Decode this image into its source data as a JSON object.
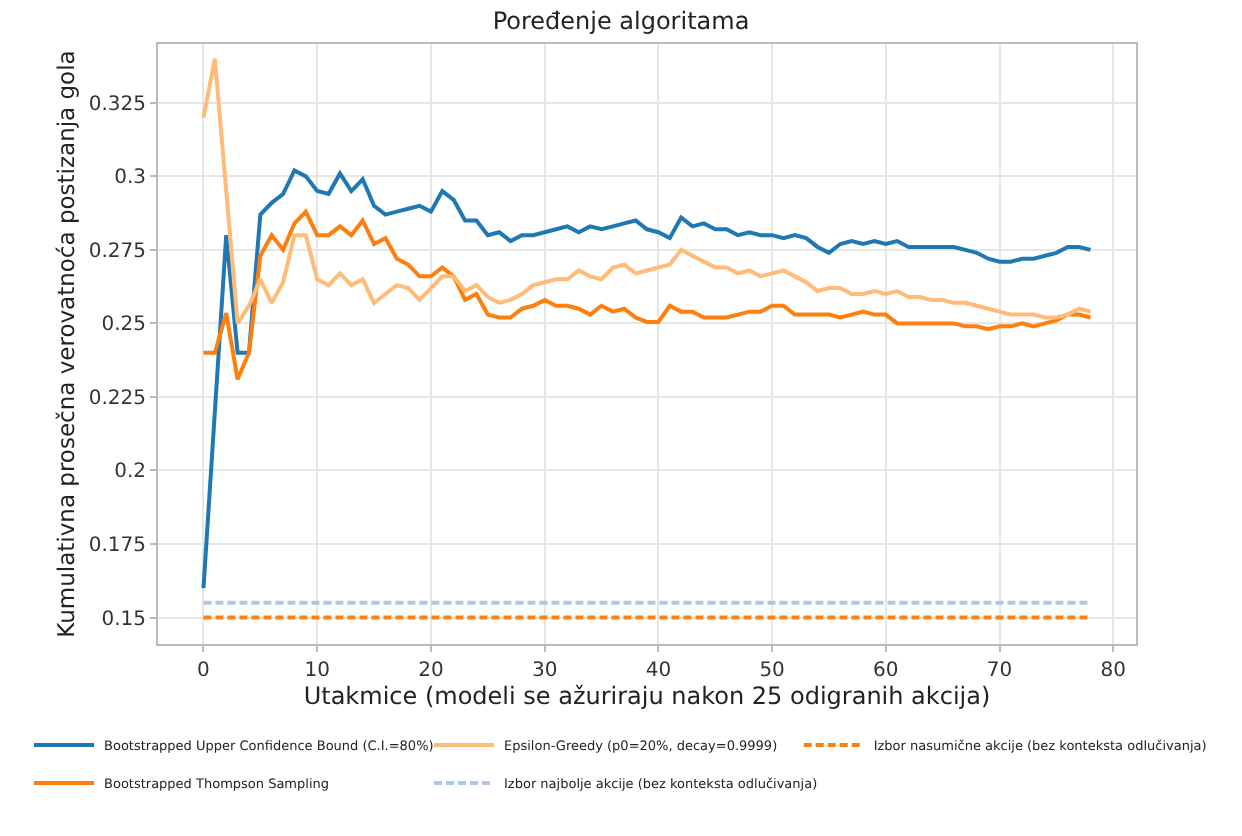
{
  "chart_data": {
    "type": "line",
    "title": "Poređenje algoritama",
    "xlabel": "Utakmice (modeli se ažuriraju nakon 25 odigranih akcija)",
    "ylabel": "Kumulativna prosečna verovatnoća postizanja gola",
    "x": [
      0,
      1,
      2,
      3,
      4,
      5,
      6,
      7,
      8,
      9,
      10,
      11,
      12,
      13,
      14,
      15,
      16,
      17,
      18,
      19,
      20,
      21,
      22,
      23,
      24,
      25,
      26,
      27,
      28,
      29,
      30,
      31,
      32,
      33,
      34,
      35,
      36,
      37,
      38,
      39,
      40,
      41,
      42,
      43,
      44,
      45,
      46,
      47,
      48,
      49,
      50,
      51,
      52,
      53,
      54,
      55,
      56,
      57,
      58,
      59,
      60,
      61,
      62,
      63,
      64,
      65,
      66,
      67,
      68,
      69,
      70,
      71,
      72,
      73,
      74,
      75,
      76,
      77,
      78
    ],
    "xlim": [
      -4,
      82
    ],
    "xticks": [
      0,
      10,
      20,
      30,
      40,
      50,
      60,
      70,
      80
    ],
    "ylim": [
      0.141,
      0.345
    ],
    "yticks": [
      0.15,
      0.175,
      0.2,
      0.225,
      0.25,
      0.275,
      0.3,
      0.325
    ],
    "grid": true,
    "legend": "bottom",
    "marker": "none",
    "line_style": "solid",
    "series": [
      {
        "name": "Bootstrapped Upper Confidence Bound (C.I.=80%)",
        "color": "#1f77b4",
        "values": [
          0.16,
          0.22,
          0.28,
          0.24,
          0.24,
          0.287,
          0.291,
          0.294,
          0.302,
          0.3,
          0.295,
          0.294,
          0.301,
          0.295,
          0.299,
          0.29,
          0.287,
          0.288,
          0.289,
          0.29,
          0.288,
          0.295,
          0.292,
          0.285,
          0.285,
          0.28,
          0.281,
          0.278,
          0.28,
          0.28,
          0.281,
          0.282,
          0.283,
          0.281,
          0.283,
          0.282,
          0.283,
          0.284,
          0.285,
          0.282,
          0.281,
          0.279,
          0.286,
          0.283,
          0.284,
          0.282,
          0.282,
          0.28,
          0.281,
          0.28,
          0.28,
          0.279,
          0.28,
          0.279,
          0.276,
          0.274,
          0.277,
          0.278,
          0.277,
          0.278,
          0.277,
          0.278,
          0.276,
          0.276,
          0.276,
          0.276,
          0.276,
          0.275,
          0.274,
          0.272,
          0.271,
          0.271,
          0.272,
          0.272,
          0.273,
          0.274,
          0.276,
          0.276,
          0.275
        ]
      },
      {
        "name": "Bootstrapped Thompson Sampling",
        "color": "#ff7f0e",
        "values": [
          0.24,
          0.24,
          0.2535,
          0.231,
          0.24,
          0.273,
          0.28,
          0.275,
          0.284,
          0.288,
          0.28,
          0.28,
          0.283,
          0.28,
          0.285,
          0.277,
          0.279,
          0.272,
          0.27,
          0.266,
          0.266,
          0.269,
          0.266,
          0.258,
          0.26,
          0.253,
          0.252,
          0.252,
          0.255,
          0.256,
          0.258,
          0.256,
          0.256,
          0.255,
          0.253,
          0.256,
          0.254,
          0.255,
          0.252,
          0.2505,
          0.2505,
          0.256,
          0.254,
          0.254,
          0.252,
          0.252,
          0.252,
          0.253,
          0.254,
          0.254,
          0.256,
          0.256,
          0.253,
          0.253,
          0.253,
          0.253,
          0.252,
          0.253,
          0.254,
          0.253,
          0.253,
          0.25,
          0.25,
          0.25,
          0.25,
          0.25,
          0.25,
          0.249,
          0.249,
          0.248,
          0.249,
          0.249,
          0.25,
          0.249,
          0.25,
          0.251,
          0.253,
          0.253,
          0.252
        ]
      },
      {
        "name": "Epsilon-Greedy (p0=20%, decay=0.9999)",
        "color": "#ffbb78",
        "values": [
          0.32,
          0.34,
          0.295,
          0.25,
          0.256,
          0.265,
          0.257,
          0.264,
          0.28,
          0.28,
          0.265,
          0.263,
          0.267,
          0.263,
          0.265,
          0.257,
          0.26,
          0.263,
          0.262,
          0.258,
          0.262,
          0.266,
          0.266,
          0.261,
          0.263,
          0.259,
          0.257,
          0.258,
          0.26,
          0.263,
          0.264,
          0.265,
          0.265,
          0.268,
          0.266,
          0.265,
          0.269,
          0.27,
          0.267,
          0.268,
          0.269,
          0.27,
          0.275,
          0.273,
          0.271,
          0.269,
          0.269,
          0.267,
          0.268,
          0.266,
          0.267,
          0.268,
          0.266,
          0.264,
          0.261,
          0.262,
          0.262,
          0.26,
          0.26,
          0.261,
          0.26,
          0.261,
          0.259,
          0.259,
          0.258,
          0.258,
          0.257,
          0.257,
          0.256,
          0.255,
          0.254,
          0.253,
          0.253,
          0.253,
          0.252,
          0.252,
          0.253,
          0.255,
          0.254
        ]
      },
      {
        "name": "Izbor najbolje akcije (bez konteksta odlučivanja)",
        "color": "#aec7e8",
        "line_style": "dashed",
        "values": [
          0.155,
          0.155,
          0.155,
          0.155,
          0.155,
          0.155,
          0.155,
          0.155,
          0.155,
          0.155,
          0.155,
          0.155,
          0.155,
          0.155,
          0.155,
          0.155,
          0.155,
          0.155,
          0.155,
          0.155,
          0.155,
          0.155,
          0.155,
          0.155,
          0.155,
          0.155,
          0.155,
          0.155,
          0.155,
          0.155,
          0.155,
          0.155,
          0.155,
          0.155,
          0.155,
          0.155,
          0.155,
          0.155,
          0.155,
          0.155,
          0.155,
          0.155,
          0.155,
          0.155,
          0.155,
          0.155,
          0.155,
          0.155,
          0.155,
          0.155,
          0.155,
          0.155,
          0.155,
          0.155,
          0.155,
          0.155,
          0.155,
          0.155,
          0.155,
          0.155,
          0.155,
          0.155,
          0.155,
          0.155,
          0.155,
          0.155,
          0.155,
          0.155,
          0.155,
          0.155,
          0.155,
          0.155,
          0.155,
          0.155,
          0.155,
          0.155,
          0.155,
          0.155,
          0.155
        ]
      },
      {
        "name": "Izbor nasumične akcije (bez konteksta odlučivanja)",
        "color": "#ff7f0e",
        "line_style": "dashed",
        "values": [
          0.15,
          0.15,
          0.15,
          0.15,
          0.15,
          0.15,
          0.15,
          0.15,
          0.15,
          0.15,
          0.15,
          0.15,
          0.15,
          0.15,
          0.15,
          0.15,
          0.15,
          0.15,
          0.15,
          0.15,
          0.15,
          0.15,
          0.15,
          0.15,
          0.15,
          0.15,
          0.15,
          0.15,
          0.15,
          0.15,
          0.15,
          0.15,
          0.15,
          0.15,
          0.15,
          0.15,
          0.15,
          0.15,
          0.15,
          0.15,
          0.15,
          0.15,
          0.15,
          0.15,
          0.15,
          0.15,
          0.15,
          0.15,
          0.15,
          0.15,
          0.15,
          0.15,
          0.15,
          0.15,
          0.15,
          0.15,
          0.15,
          0.15,
          0.15,
          0.15,
          0.15,
          0.15,
          0.15,
          0.15,
          0.15,
          0.15,
          0.15,
          0.15,
          0.15,
          0.15,
          0.15,
          0.15,
          0.15,
          0.15,
          0.15,
          0.15,
          0.15,
          0.15,
          0.15
        ]
      }
    ]
  }
}
